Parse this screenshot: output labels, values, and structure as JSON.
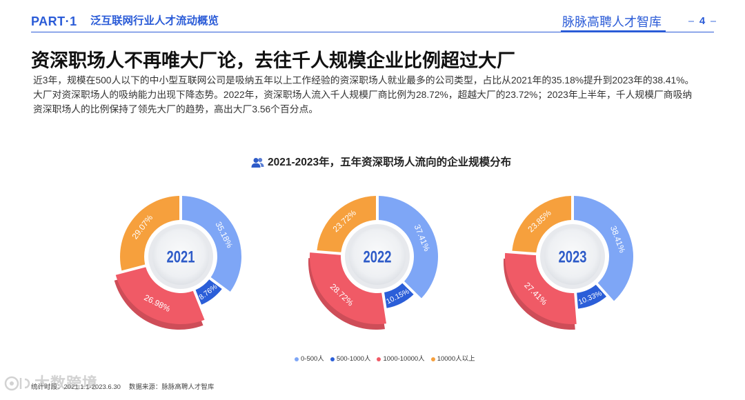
{
  "header": {
    "part": "PART·1",
    "section": "泛互联网行业人才流动概览",
    "brand": "脉脉高聘人才智库",
    "page_number": "4"
  },
  "title": "资深职场人不再唯大厂论，去往千人规模企业比例超过大厂",
  "body": "近3年，规模在500人以下的中小型互联网公司是吸纳五年以上工作经验的资深职场人就业最多的公司类型，占比从2021年的35.18%提升到2023年的38.41%。大厂对资深职场人的吸纳能力出现下降态势。2022年，资深职场人流入千人规模厂商比例为28.72%，超越大厂的23.72%；2023年上半年，千人规模厂商吸纳资深职场人的比例保持了领先大厂的趋势，高出大厂3.56个百分点。",
  "chart_icon": "users-icon",
  "chart_data": {
    "type": "pie",
    "title": "2021-2023年，五年资深职场人流向的企业规模分布",
    "categories": [
      "0-500人",
      "500-1000人",
      "1000-10000人",
      "10000人以上"
    ],
    "colors": [
      "#7EA6F6",
      "#2B5ED8",
      "#F05A66",
      "#F6A03D"
    ],
    "series": [
      {
        "name": "2021",
        "values": [
          35.18,
          8.76,
          26.98,
          29.07
        ]
      },
      {
        "name": "2022",
        "values": [
          37.41,
          10.15,
          28.72,
          23.72
        ]
      },
      {
        "name": "2023",
        "values": [
          38.41,
          10.33,
          27.41,
          23.85
        ]
      }
    ],
    "value_suffix": "%",
    "legend": "bottom"
  },
  "footer": {
    "period": "统计时段：2021.1.1-2023.6.30",
    "source": "数据来源：脉脉高聘人才智库"
  },
  "watermark": "大数跨境",
  "theme": {
    "primary": "#2A5BD7",
    "center_label": "#2E5BC8"
  }
}
